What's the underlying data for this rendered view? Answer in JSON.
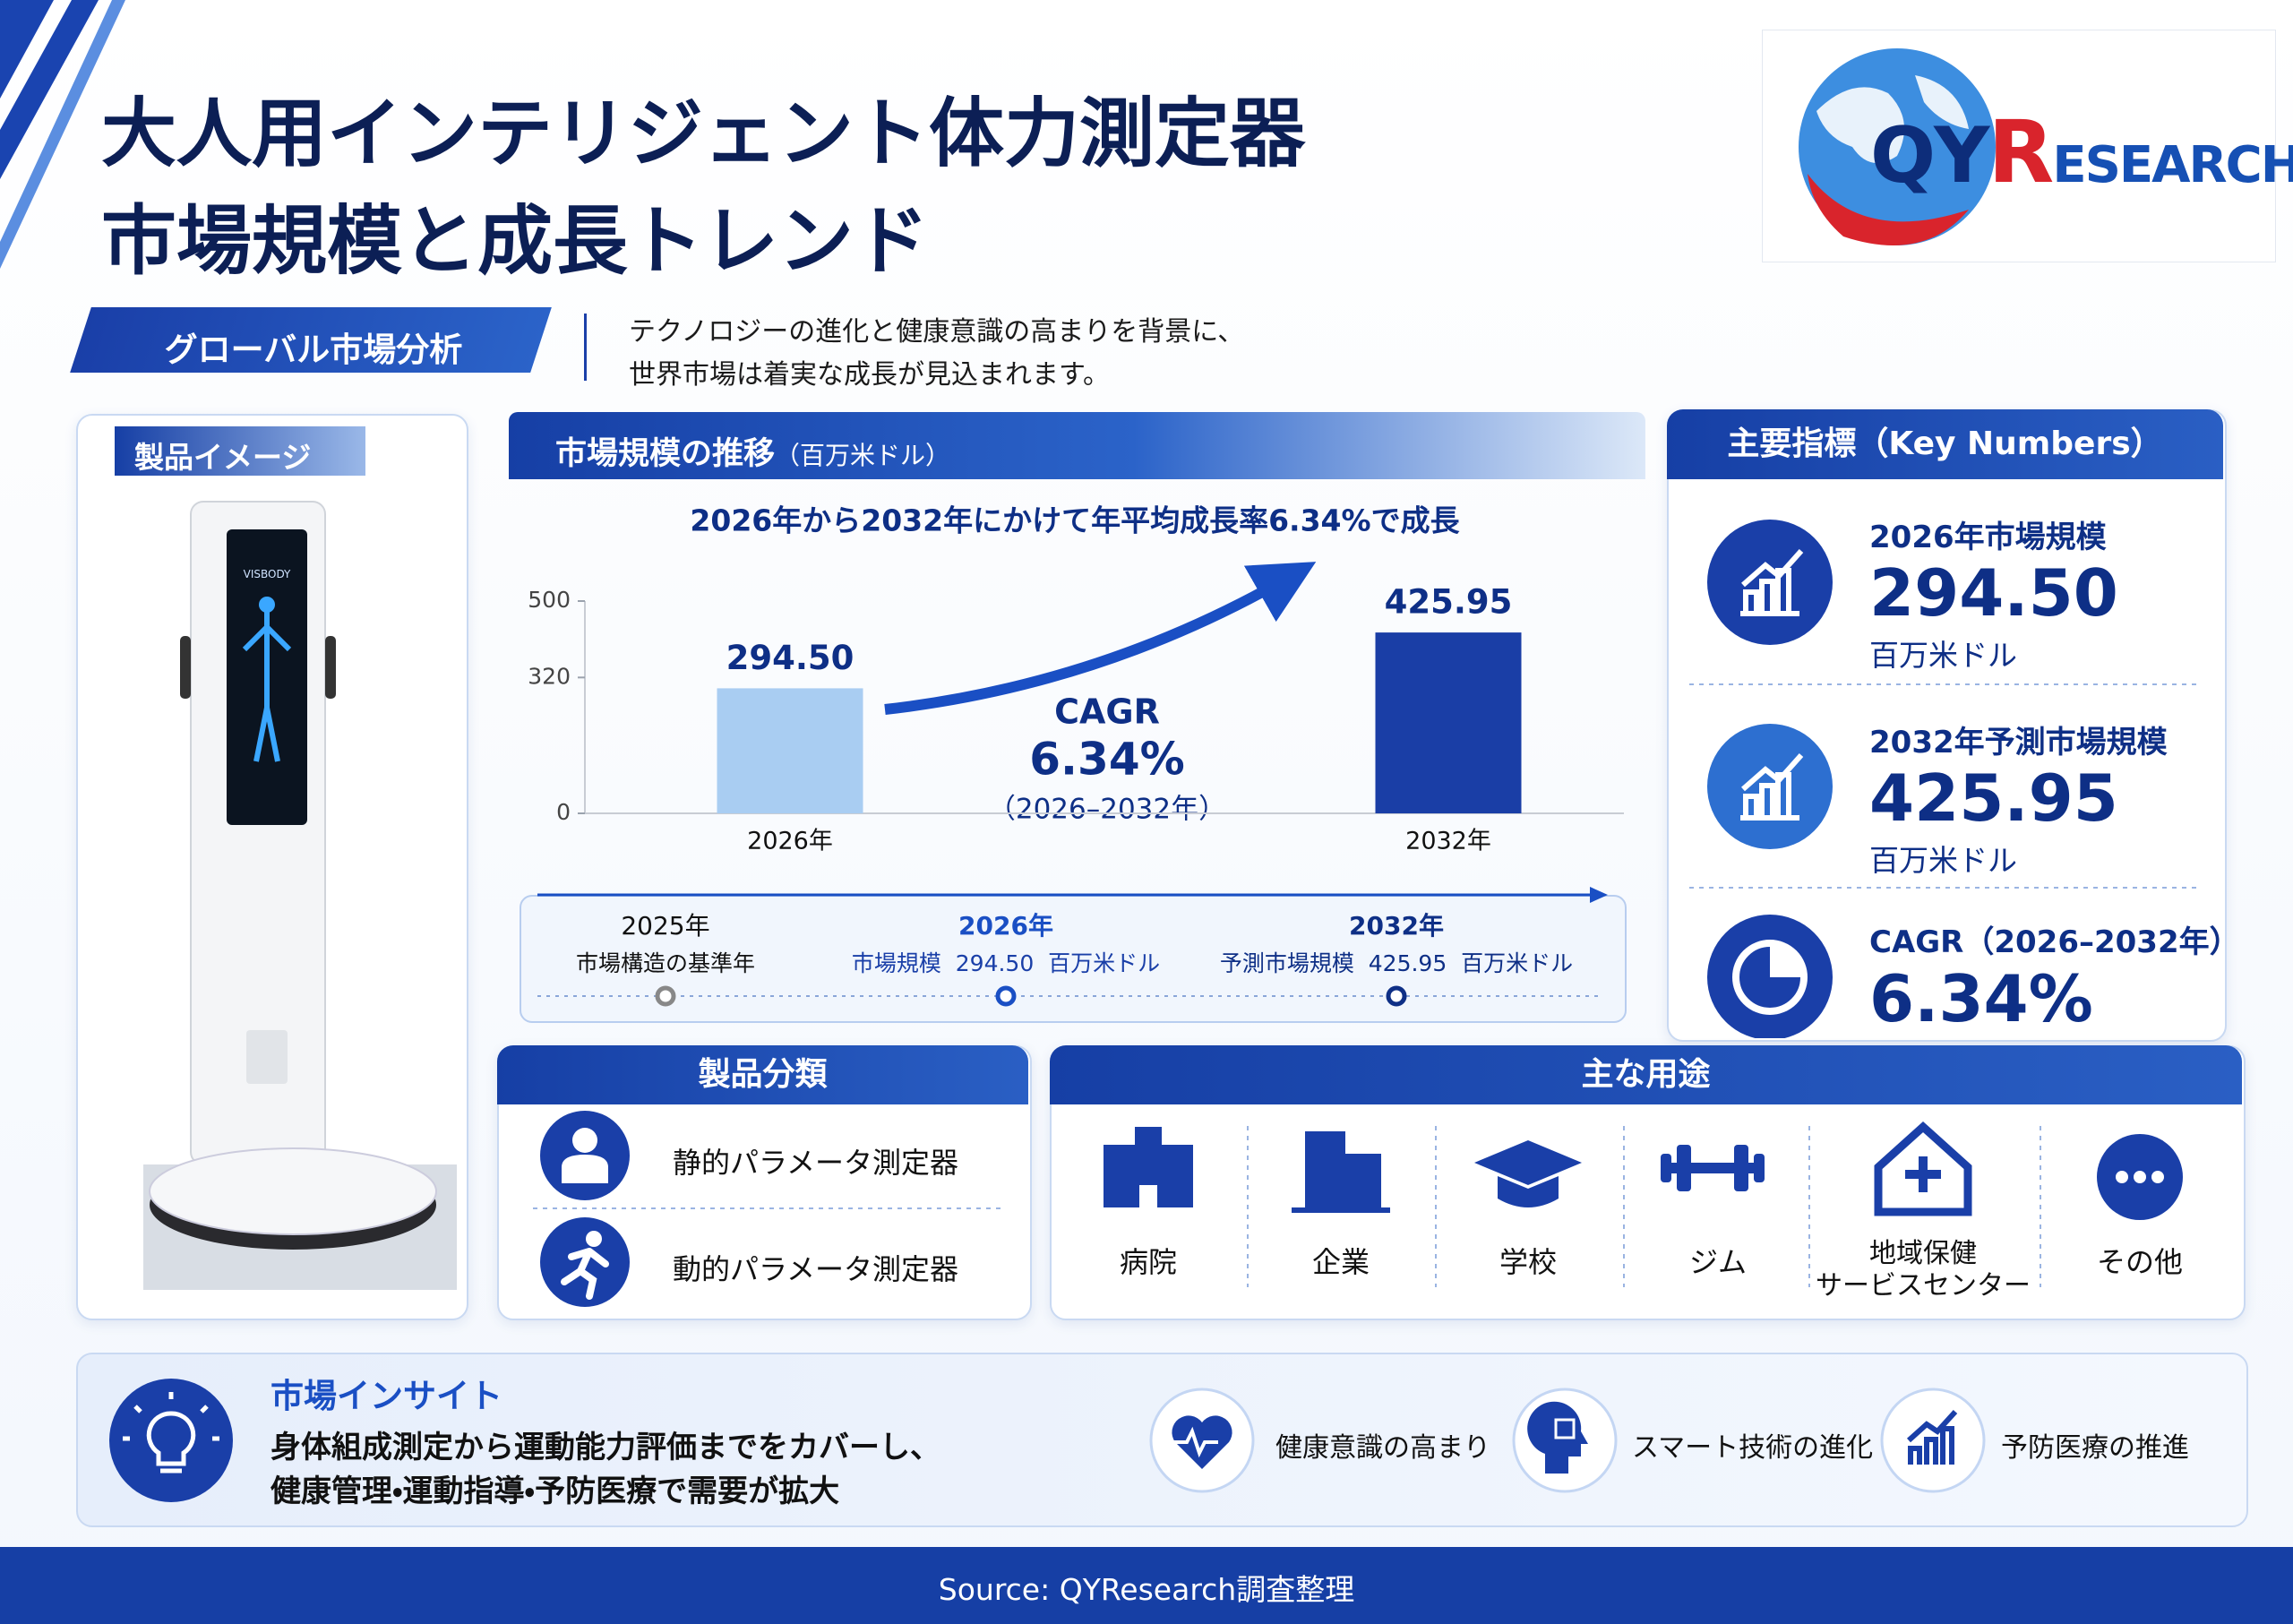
{
  "header": {
    "title_line1": "大人用インテリジェント体力測定器",
    "title_line2": "市場規模と成長トレンド"
  },
  "logo": {
    "parts": [
      "QY",
      "R",
      "ESEARCH"
    ]
  },
  "tag": "グローバル市場分析",
  "description": [
    "テクノロジーの進化と健康意識の高まりを背景に、",
    "世界市場は着実な成長が見込まれます。"
  ],
  "product_image": {
    "label": "製品イメージ",
    "screen_text": "VISBODY"
  },
  "chart_data": {
    "type": "bar",
    "title": "市場規模の推移",
    "unit": "（百万米ドル）",
    "subtitle": "2026年から2032年にかけて年平均成長率6.34%で成長",
    "categories": [
      "2026年",
      "2032年"
    ],
    "values": [
      294.5,
      425.95
    ],
    "value_labels": [
      "294.50",
      "425.95"
    ],
    "colors": [
      "#a9cdf2",
      "#1a3ea6"
    ],
    "ylim": [
      0,
      500
    ],
    "yticks": [
      0,
      320,
      500
    ],
    "annotation": {
      "label": "CAGR",
      "value": "6.34%",
      "period": "（2026–2032年）"
    }
  },
  "timeline": [
    {
      "year": "2025年",
      "text": "市場構造の基準年"
    },
    {
      "year": "2026年",
      "text": "市場規模  294.50  百万米ドル"
    },
    {
      "year": "2032年",
      "text": "予測市場規模  425.95  百万米ドル"
    }
  ],
  "key_numbers": {
    "title": "主要指標（Key Numbers）",
    "items": [
      {
        "label": "2026年市場規模",
        "value": "294.50",
        "unit": "百万米ドル"
      },
      {
        "label": "2032年予測市場規模",
        "value": "425.95",
        "unit": "百万米ドル"
      },
      {
        "label": "CAGR（2026–2032年）",
        "value": "6.34%"
      }
    ]
  },
  "product_types": {
    "title": "製品分類",
    "items": [
      "静的パラメータ測定器",
      "動的パラメータ測定器"
    ]
  },
  "applications": {
    "title": "主な用途",
    "items": [
      "病院",
      "企業",
      "学校",
      "ジム",
      "地域保健\nサービスセンター",
      "その他"
    ]
  },
  "insight": {
    "title": "市場インサイト",
    "body": [
      "身体組成測定から運動能力評価までをカバーし、",
      "健康管理・運動指導・予防医療で需要が拡大"
    ],
    "drivers": [
      "健康意識の高まり",
      "スマート技術の進化",
      "予防医療の推進"
    ]
  },
  "footer": {
    "source": "Source: QYResearch調査整理"
  }
}
